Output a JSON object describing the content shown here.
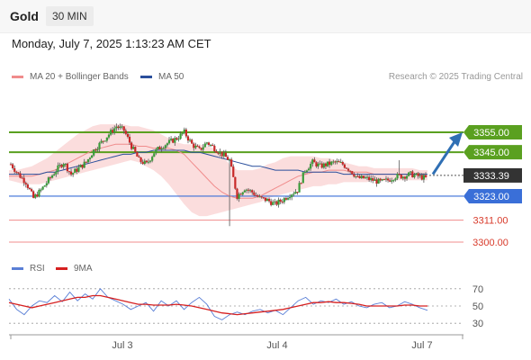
{
  "header": {
    "symbol": "Gold",
    "timeframe": "30 MIN"
  },
  "datetime": "Monday, July 7, 2025 1:13:23 AM CET",
  "legend": {
    "items": [
      {
        "label": "MA 20 + Bollinger Bands",
        "color": "#f08c8c"
      },
      {
        "label": "MA 50",
        "color": "#2a4f9c"
      }
    ],
    "credit": "Research © 2025 Trading Central"
  },
  "rsi_legend": {
    "items": [
      {
        "label": "RSI",
        "color": "#5a7fd6"
      },
      {
        "label": "9MA",
        "color": "#d62020"
      }
    ]
  },
  "colors": {
    "resistance": "#5aa020",
    "pivot": "#3a6fd8",
    "support": "#f08c8c",
    "current_price": "#333333",
    "bull_candle": "#3a9d3a",
    "bear_candle": "#c82828",
    "band_fill": "#fbd9d9",
    "ma20": "#f08c8c",
    "ma50": "#2a4f9c",
    "arrow": "#2f6fb4",
    "rsi": "#5a7fd6",
    "rsi_ma": "#d62020"
  },
  "chart_data": [
    {
      "type": "candlestick",
      "x_labels": [
        "Jul 3",
        "Jul 4",
        "Jul 7"
      ],
      "ylim": [
        3286,
        3378
      ],
      "levels": [
        {
          "value": 3355.0,
          "label": "3355.00",
          "kind": "resistance"
        },
        {
          "value": 3345.0,
          "label": "3345.00",
          "kind": "resistance"
        },
        {
          "value": 3323.0,
          "label": "3323.00",
          "kind": "pivot"
        },
        {
          "value": 3311.0,
          "label": "3311.00",
          "kind": "support"
        },
        {
          "value": 3300.0,
          "label": "3300.00",
          "kind": "support"
        }
      ],
      "current_price": {
        "value": 3333.39,
        "label": "3333.39"
      },
      "forecast_arrow": {
        "from": 3334.0,
        "to": 3355.0
      },
      "price_path": [
        3339,
        3334,
        3330,
        3322,
        3326,
        3331,
        3336,
        3340,
        3334,
        3337,
        3340,
        3346,
        3350,
        3354,
        3358,
        3356,
        3348,
        3341,
        3339,
        3345,
        3348,
        3350,
        3352,
        3355,
        3349,
        3346,
        3350,
        3347,
        3344,
        3341,
        3323,
        3327,
        3325,
        3322,
        3321,
        3319,
        3321,
        3324,
        3326,
        3336,
        3340,
        3338,
        3339,
        3340,
        3339,
        3336,
        3332,
        3332,
        3331,
        3330,
        3331,
        3333,
        3333,
        3334,
        3333,
        3332
      ],
      "ma20": [
        3333,
        3333,
        3333,
        3333,
        3334,
        3335,
        3336,
        3338,
        3340,
        3342,
        3344,
        3346,
        3347,
        3348,
        3349,
        3349,
        3349,
        3348,
        3348,
        3347,
        3347,
        3347,
        3346,
        3344,
        3340,
        3336,
        3332,
        3328,
        3325,
        3323,
        3322,
        3322,
        3322,
        3323,
        3325,
        3327,
        3329,
        3331,
        3333,
        3334,
        3335,
        3335,
        3336,
        3336,
        3336,
        3335,
        3335,
        3335,
        3334,
        3334,
        3334,
        3334,
        3334,
        3334,
        3334,
        3333
      ],
      "band_upper": [
        3336,
        3336,
        3337,
        3338,
        3340,
        3342,
        3345,
        3348,
        3351,
        3354,
        3356,
        3358,
        3359,
        3359,
        3359,
        3359,
        3358,
        3358,
        3357,
        3356,
        3354,
        3352,
        3350,
        3349,
        3349,
        3349,
        3348,
        3347,
        3343,
        3339,
        3336,
        3336,
        3336,
        3337,
        3339,
        3340,
        3342,
        3343,
        3343,
        3343,
        3343,
        3342,
        3342,
        3341,
        3340,
        3339,
        3338,
        3338,
        3337,
        3337,
        3337,
        3337,
        3337,
        3337,
        3336,
        3336
      ],
      "band_lower": [
        3331,
        3330,
        3329,
        3329,
        3329,
        3330,
        3331,
        3332,
        3333,
        3334,
        3335,
        3336,
        3337,
        3338,
        3339,
        3340,
        3341,
        3340,
        3338,
        3336,
        3333,
        3329,
        3324,
        3319,
        3315,
        3313,
        3313,
        3314,
        3315,
        3316,
        3317,
        3318,
        3319,
        3320,
        3322,
        3323,
        3324,
        3325,
        3326,
        3327,
        3328,
        3328,
        3329,
        3329,
        3330,
        3330,
        3330,
        3330,
        3331,
        3331,
        3331,
        3331,
        3331,
        3331,
        3331,
        3331
      ],
      "ma50": [
        3334,
        3334,
        3334,
        3334,
        3334,
        3335,
        3335,
        3336,
        3337,
        3338,
        3339,
        3340,
        3341,
        3342,
        3343,
        3344,
        3344,
        3345,
        3345,
        3346,
        3346,
        3346,
        3346,
        3346,
        3345,
        3345,
        3344,
        3343,
        3342,
        3341,
        3340,
        3339,
        3338,
        3338,
        3337,
        3336,
        3336,
        3336,
        3336,
        3335,
        3335,
        3335,
        3335,
        3335,
        3334,
        3334,
        3334,
        3334,
        3334,
        3334,
        3334,
        3334,
        3334,
        3334,
        3334,
        3334
      ]
    },
    {
      "type": "line",
      "title": "RSI",
      "ylim": [
        25,
        75
      ],
      "y_ticks": [
        30,
        50,
        70
      ],
      "x_labels": [
        "Jul 3",
        "Jul 4",
        "Jul 7"
      ],
      "series": [
        {
          "name": "RSI",
          "values": [
            58,
            46,
            40,
            50,
            56,
            54,
            62,
            55,
            66,
            56,
            64,
            58,
            70,
            60,
            56,
            52,
            46,
            50,
            54,
            44,
            56,
            50,
            56,
            46,
            54,
            60,
            52,
            38,
            34,
            40,
            43,
            40,
            44,
            46,
            42,
            45,
            40,
            48,
            56,
            60,
            52,
            56,
            54,
            58,
            52,
            55,
            50,
            48,
            52,
            54,
            48,
            50,
            55,
            52,
            48,
            45
          ]
        },
        {
          "name": "9MA",
          "values": [
            54,
            52,
            50,
            48,
            50,
            52,
            54,
            56,
            58,
            60,
            60,
            62,
            62,
            60,
            58,
            56,
            54,
            52,
            52,
            51,
            51,
            51,
            52,
            51,
            50,
            48,
            46,
            44,
            42,
            41,
            40,
            41,
            42,
            43,
            44,
            45,
            46,
            48,
            50,
            52,
            54,
            54,
            55,
            54,
            54,
            53,
            52,
            50,
            50,
            50,
            50,
            50,
            51,
            51,
            50,
            50
          ]
        }
      ]
    }
  ]
}
